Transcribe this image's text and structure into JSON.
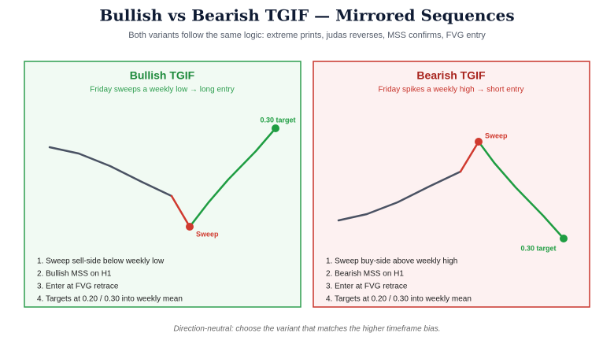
{
  "header": {
    "title": "Bullish vs Bearish TGIF — Mirrored Sequences",
    "subtitle": "Both variants follow the same logic: extreme prints, judas reverses, MSS confirms, FVG entry"
  },
  "panels": [
    {
      "title": "Bullish TGIF",
      "subtitle": "Friday sweeps a weekly low → long entry",
      "sweep_label": "Sweep",
      "target_label": "0.30 target",
      "steps": [
        "1. Sweep sell-side below weekly low",
        "2. Bullish MSS on H1",
        "3. Enter at FVG retrace",
        "4. Targets at 0.20 / 0.30 into weekly mean"
      ]
    },
    {
      "title": "Bearish TGIF",
      "subtitle": "Friday spikes a weekly high → short entry",
      "sweep_label": "Sweep",
      "target_label": "0.30 target",
      "steps": [
        "1. Sweep buy-side above weekly high",
        "2. Bearish MSS on H1",
        "3. Enter at FVG retrace",
        "4. Targets at 0.20 / 0.30 into weekly mean"
      ]
    }
  ],
  "footer": "Direction-neutral: choose the variant that matches the higher timeframe bias."
}
